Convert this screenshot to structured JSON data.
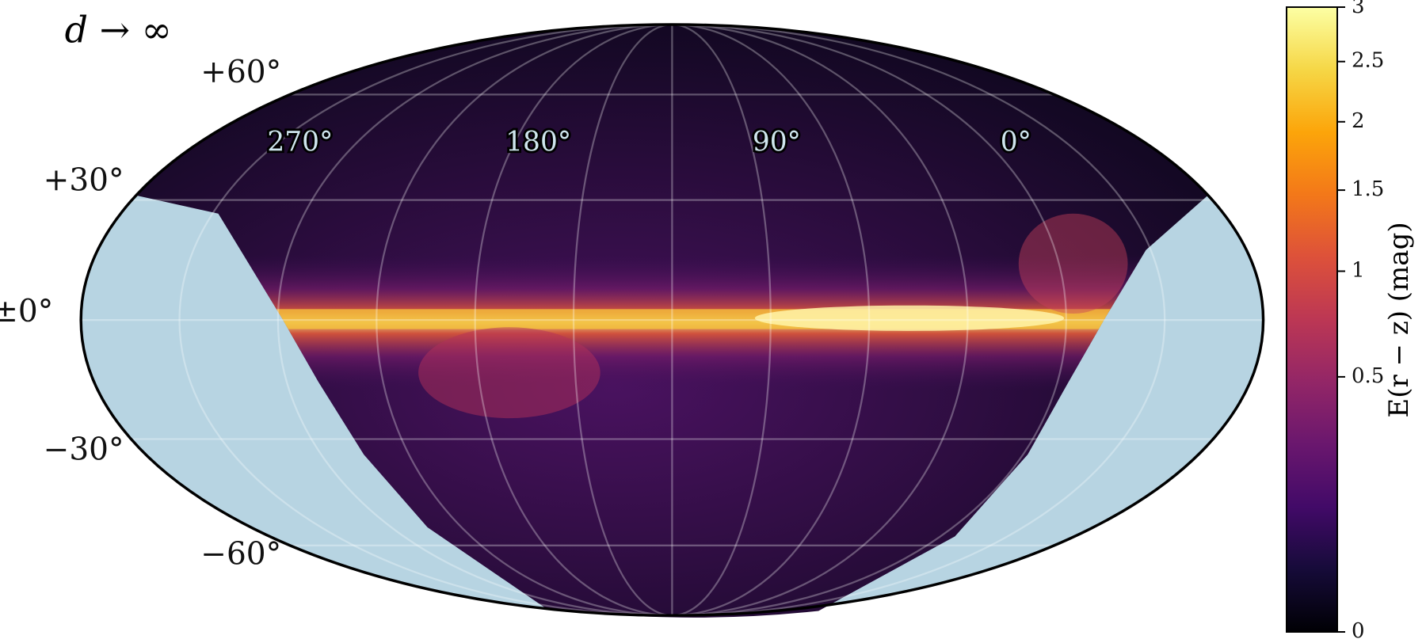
{
  "title": "d → ∞",
  "graticule": {
    "latitude_labels": [
      "+60°",
      "+30°",
      "±0°",
      "−30°",
      "−60°"
    ],
    "longitude_labels": [
      "270°",
      "180°",
      "90°",
      "0°"
    ]
  },
  "colorbar": {
    "label": "E(r − z)  (mag)",
    "lim": [
      0,
      3
    ],
    "scale": "sqrt",
    "ticks": [
      0,
      0.5,
      1,
      1.5,
      2,
      2.5,
      3
    ]
  }
}
